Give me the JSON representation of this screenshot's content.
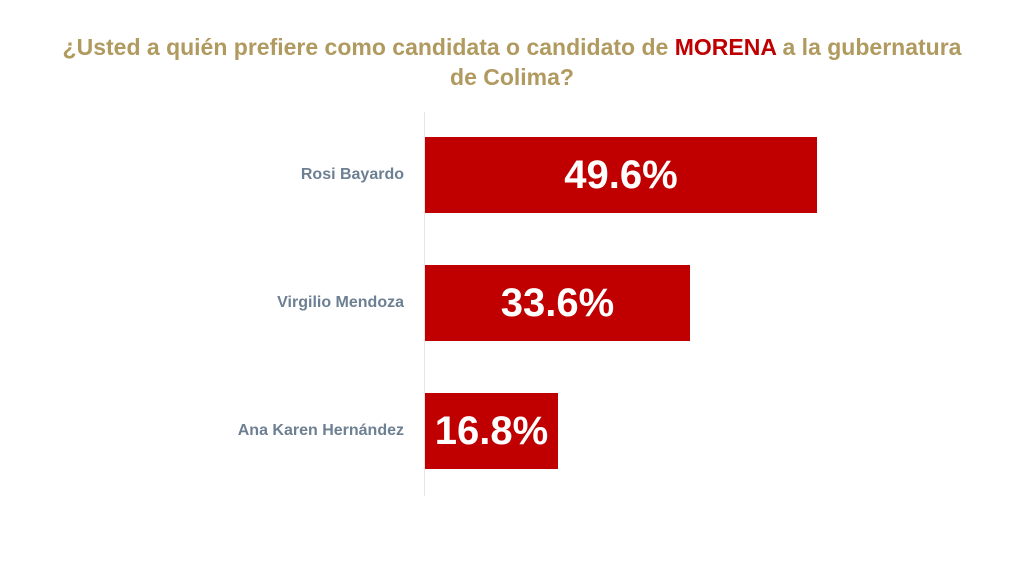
{
  "title": {
    "prefix": "¿Usted a quién prefiere como candidata o candidato de ",
    "highlight": "MORENA",
    "suffix": " a la gubernatura de Colima?",
    "text_color": "#b09a5f",
    "highlight_color": "#c00000"
  },
  "chart_data": {
    "type": "bar",
    "orientation": "horizontal",
    "title": "¿Usted a quién prefiere como candidata o candidato de MORENA a la gubernatura de Colima?",
    "categories": [
      "Rosi Bayardo",
      "Virgilio Mendoza",
      "Ana Karen Hernández"
    ],
    "values": [
      49.6,
      33.6,
      16.8
    ],
    "value_labels": [
      "49.6%",
      "33.6%",
      "16.8%"
    ],
    "unit": "%",
    "bar_color": "#c00000",
    "label_color": "#6d7f92",
    "grid": false,
    "legend": "none",
    "xlim": [
      0,
      100
    ]
  }
}
